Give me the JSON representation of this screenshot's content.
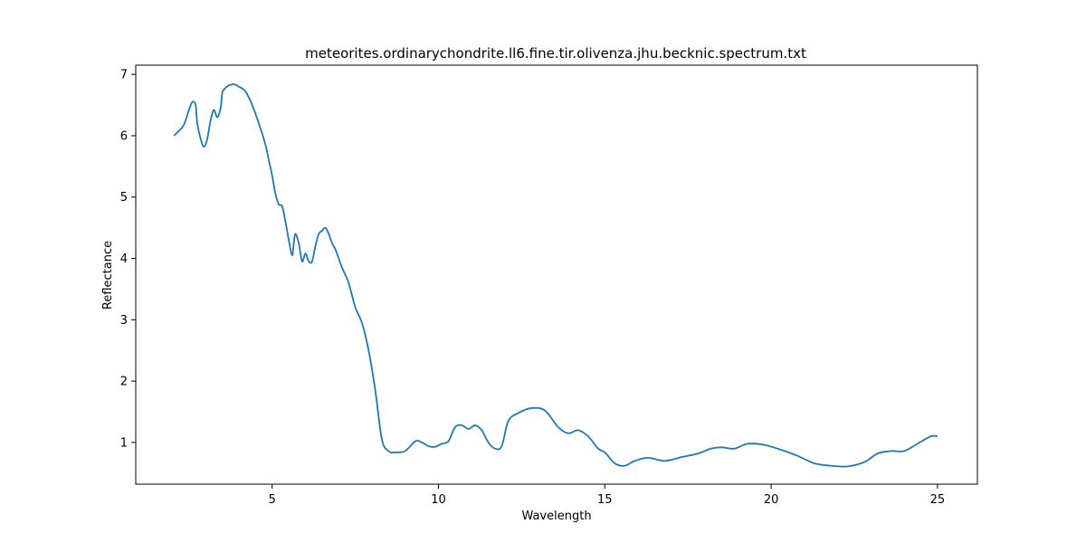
{
  "chart_data": {
    "type": "line",
    "title": "meteorites.ordinarychondrite.ll6.fine.tir.olivenza.jhu.becknic.spectrum.txt",
    "xlabel": "Wavelength",
    "ylabel": "Reflectance",
    "xlim": [
      0.9,
      26.2
    ],
    "ylim": [
      0.32,
      7.15
    ],
    "xticks": [
      5,
      10,
      15,
      20,
      25
    ],
    "yticks": [
      1,
      2,
      3,
      4,
      5,
      6,
      7
    ],
    "grid": false,
    "color": "#1f77b4",
    "series": [
      {
        "x": [
          2.05,
          2.2,
          2.35,
          2.5,
          2.6,
          2.7,
          2.75,
          2.85,
          2.95,
          3.05,
          3.15,
          3.25,
          3.35,
          3.45,
          3.5,
          3.55,
          3.6,
          3.7,
          3.85,
          4.0,
          4.2,
          4.4,
          4.6,
          4.8,
          4.9,
          5.0,
          5.1,
          5.2,
          5.3,
          5.4,
          5.5,
          5.6,
          5.65,
          5.7,
          5.8,
          5.9,
          6.0,
          6.1,
          6.2,
          6.3,
          6.4,
          6.5,
          6.6,
          6.7,
          6.8,
          6.9,
          7.0,
          7.1,
          7.3,
          7.5,
          7.7,
          7.9,
          8.1,
          8.3,
          8.5,
          8.7,
          9.0,
          9.3,
          9.5,
          9.7,
          9.9,
          10.1,
          10.3,
          10.5,
          10.7,
          10.9,
          11.1,
          11.3,
          11.5,
          11.7,
          11.9,
          12.1,
          12.4,
          12.8,
          13.2,
          13.6,
          13.9,
          14.2,
          14.5,
          14.8,
          15.0,
          15.3,
          15.6,
          15.9,
          16.3,
          16.8,
          17.3,
          17.8,
          18.2,
          18.5,
          18.9,
          19.3,
          19.8,
          20.3,
          20.8,
          21.3,
          21.8,
          22.3,
          22.8,
          23.2,
          23.6,
          24.0,
          24.4,
          24.8,
          25.0
        ],
        "values": [
          6.0,
          6.08,
          6.18,
          6.42,
          6.55,
          6.5,
          6.2,
          5.95,
          5.82,
          5.95,
          6.25,
          6.42,
          6.3,
          6.45,
          6.7,
          6.75,
          6.78,
          6.82,
          6.84,
          6.8,
          6.72,
          6.5,
          6.2,
          5.85,
          5.6,
          5.35,
          5.05,
          4.88,
          4.85,
          4.6,
          4.3,
          4.05,
          4.25,
          4.4,
          4.25,
          3.95,
          4.08,
          3.95,
          3.95,
          4.2,
          4.4,
          4.45,
          4.5,
          4.4,
          4.25,
          4.15,
          4.0,
          3.85,
          3.6,
          3.2,
          2.95,
          2.5,
          1.85,
          1.05,
          0.86,
          0.84,
          0.86,
          1.02,
          1.0,
          0.94,
          0.93,
          0.98,
          1.02,
          1.25,
          1.28,
          1.22,
          1.28,
          1.2,
          1.0,
          0.9,
          0.94,
          1.35,
          1.48,
          1.56,
          1.52,
          1.25,
          1.15,
          1.2,
          1.1,
          0.9,
          0.84,
          0.66,
          0.62,
          0.7,
          0.75,
          0.7,
          0.76,
          0.82,
          0.9,
          0.92,
          0.9,
          0.98,
          0.96,
          0.88,
          0.78,
          0.66,
          0.62,
          0.61,
          0.68,
          0.82,
          0.86,
          0.86,
          0.98,
          1.1,
          1.1
        ]
      }
    ]
  }
}
